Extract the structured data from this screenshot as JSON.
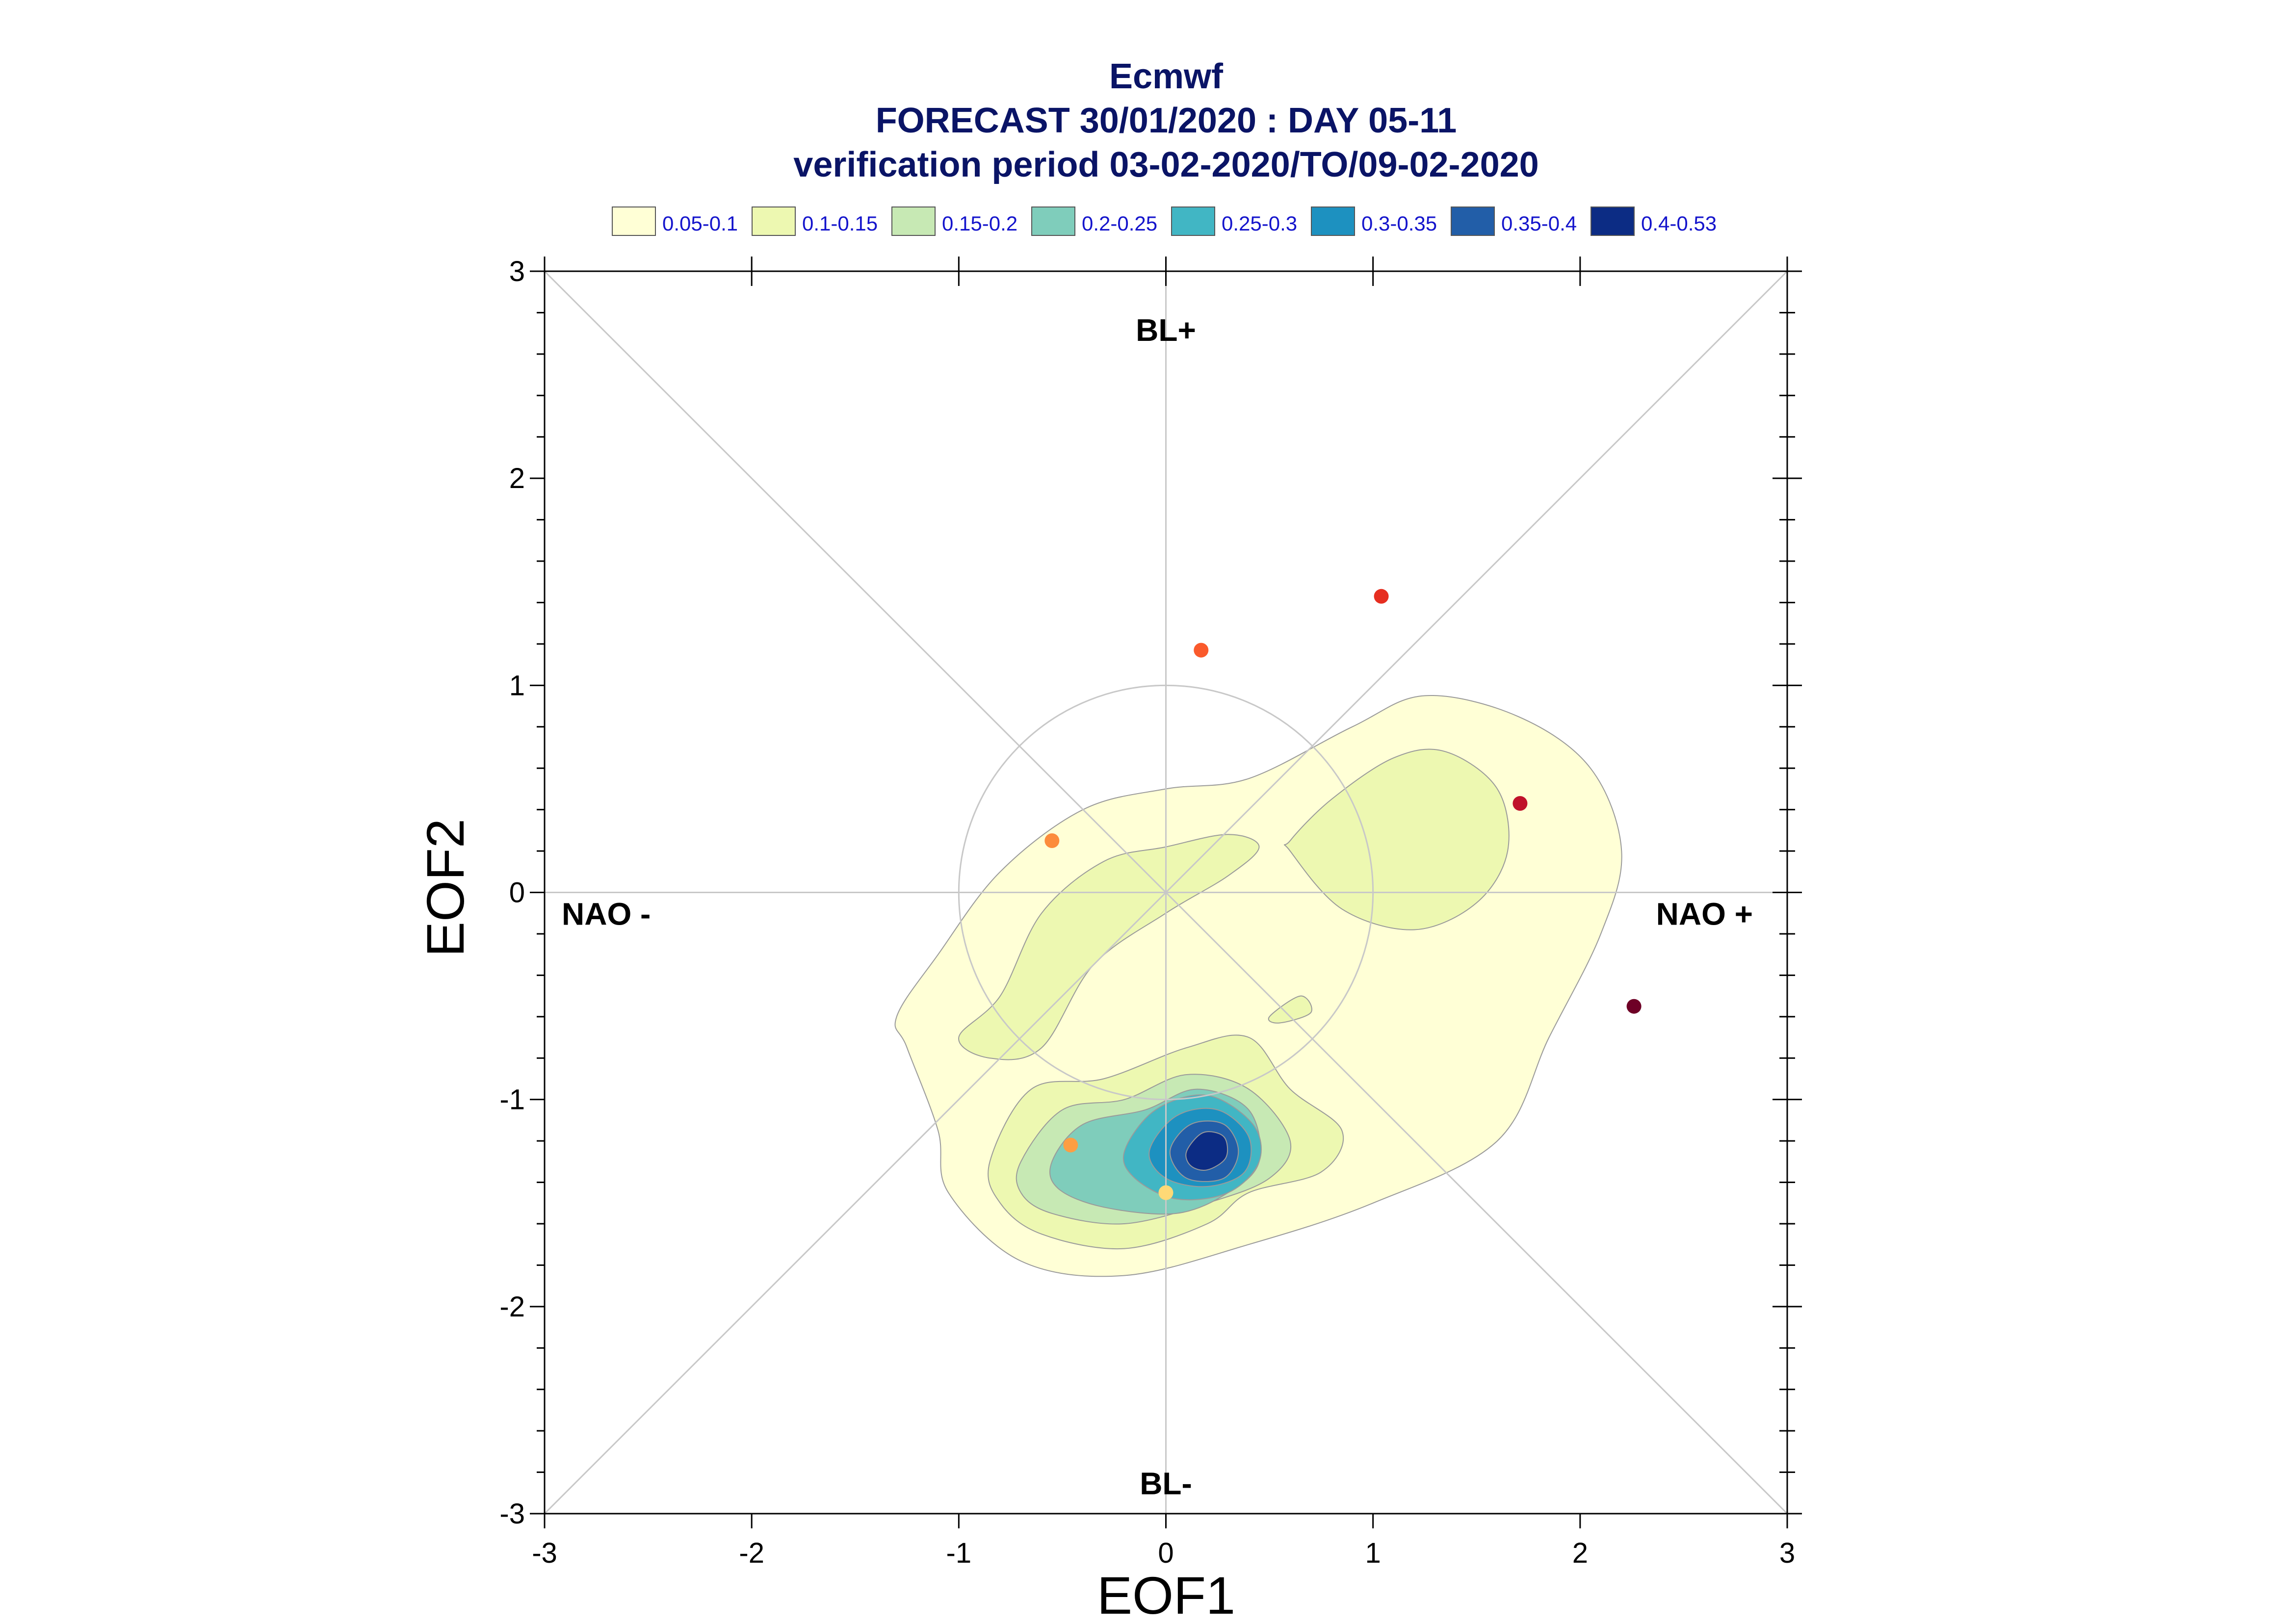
{
  "chart_data": {
    "type": "scatter",
    "title": [
      "Ecmwf",
      "FORECAST 30/01/2020 : DAY 05-11",
      "verification period 03-02-2020/TO/09-02-2020"
    ],
    "xlabel": "EOF1",
    "ylabel": "EOF2",
    "xlim": [
      -3,
      3
    ],
    "ylim": [
      -3,
      3
    ],
    "xticks": [
      -3,
      -2,
      -1,
      0,
      1,
      2,
      3
    ],
    "yticks": [
      -3,
      -2,
      -1,
      0,
      1,
      2,
      3
    ],
    "xtick_labels": [
      "-3",
      "-2",
      "-1",
      "0",
      "1",
      "2",
      "3"
    ],
    "ytick_labels": [
      "-3",
      "-2",
      "-1",
      "0",
      "1",
      "2",
      "3"
    ],
    "grid": false,
    "reference_circle_radius": 1,
    "region_labels": [
      {
        "text": "BL+",
        "x": 0,
        "y": 2.72
      },
      {
        "text": "BL-",
        "x": 0,
        "y": -2.85
      },
      {
        "text": "NAO -",
        "x": -2.55,
        "y": -0.1
      },
      {
        "text": "NAO +",
        "x": 2.55,
        "y": -0.1
      }
    ],
    "legend": {
      "placement": "top",
      "entries": [
        {
          "label": "0.05-0.1",
          "color": "#ffffd6"
        },
        {
          "label": "0.1-0.15",
          "color": "#edf8b1"
        },
        {
          "label": "0.15-0.2",
          "color": "#c7e9b4"
        },
        {
          "label": "0.2-0.25",
          "color": "#7fcdbb"
        },
        {
          "label": "0.25-0.3",
          "color": "#41b6c4"
        },
        {
          "label": "0.3-0.35",
          "color": "#1d91c0"
        },
        {
          "label": "0.35-0.4",
          "color": "#225ea8"
        },
        {
          "label": "0.4-0.53",
          "color": "#0c2c84"
        }
      ]
    },
    "density_contours": [
      {
        "level": "0.05-0.1",
        "color": "#ffffd6",
        "points": [
          [
            -1.1,
            -0.3
          ],
          [
            -0.8,
            0.1
          ],
          [
            -0.4,
            0.4
          ],
          [
            0,
            0.5
          ],
          [
            0.4,
            0.55
          ],
          [
            0.9,
            0.8
          ],
          [
            1.25,
            0.95
          ],
          [
            1.7,
            0.85
          ],
          [
            2.05,
            0.6
          ],
          [
            2.2,
            0.2
          ],
          [
            2.1,
            -0.2
          ],
          [
            1.85,
            -0.7
          ],
          [
            1.6,
            -1.2
          ],
          [
            1.0,
            -1.5
          ],
          [
            0.4,
            -1.7
          ],
          [
            -0.2,
            -1.85
          ],
          [
            -0.7,
            -1.78
          ],
          [
            -1.05,
            -1.45
          ],
          [
            -1.1,
            -1.15
          ],
          [
            -1.25,
            -0.75
          ],
          [
            -1.3,
            -0.6
          ]
        ]
      },
      {
        "level": "0.1-0.15",
        "color": "#edf8b1",
        "points": [
          [
            -0.8,
            -0.5
          ],
          [
            -0.6,
            -0.1
          ],
          [
            -0.3,
            0.15
          ],
          [
            0,
            0.22
          ],
          [
            0.3,
            0.28
          ],
          [
            0.45,
            0.22
          ],
          [
            0.3,
            0.08
          ],
          [
            0,
            -0.1
          ],
          [
            -0.35,
            -0.35
          ],
          [
            -0.6,
            -0.75
          ],
          [
            -0.85,
            -0.8
          ],
          [
            -1.0,
            -0.7
          ]
        ]
      },
      {
        "level": "0.1-0.15",
        "color": "#edf8b1",
        "points": [
          [
            0.6,
            0.25
          ],
          [
            0.8,
            0.45
          ],
          [
            1.1,
            0.65
          ],
          [
            1.35,
            0.68
          ],
          [
            1.6,
            0.5
          ],
          [
            1.65,
            0.2
          ],
          [
            1.5,
            -0.05
          ],
          [
            1.2,
            -0.18
          ],
          [
            0.85,
            -0.08
          ],
          [
            0.6,
            0.2
          ]
        ]
      },
      {
        "level": "0.1-0.15",
        "color": "#edf8b1",
        "points": [
          [
            0.5,
            -0.6
          ],
          [
            0.65,
            -0.5
          ],
          [
            0.7,
            -0.58
          ],
          [
            0.55,
            -0.63
          ]
        ]
      },
      {
        "level": "0.1-0.15",
        "color": "#edf8b1",
        "points": [
          [
            -0.85,
            -1.3
          ],
          [
            -0.65,
            -0.95
          ],
          [
            -0.3,
            -0.9
          ],
          [
            0.1,
            -0.75
          ],
          [
            0.4,
            -0.7
          ],
          [
            0.6,
            -0.95
          ],
          [
            0.85,
            -1.15
          ],
          [
            0.75,
            -1.35
          ],
          [
            0.4,
            -1.45
          ],
          [
            0.2,
            -1.6
          ],
          [
            -0.2,
            -1.72
          ],
          [
            -0.6,
            -1.65
          ],
          [
            -0.8,
            -1.5
          ]
        ]
      },
      {
        "level": "0.15-0.2",
        "color": "#c7e9b4",
        "points": [
          [
            -0.7,
            -1.3
          ],
          [
            -0.5,
            -1.05
          ],
          [
            -0.2,
            -1.0
          ],
          [
            0.1,
            -0.88
          ],
          [
            0.4,
            -0.95
          ],
          [
            0.6,
            -1.2
          ],
          [
            0.5,
            -1.38
          ],
          [
            0.2,
            -1.5
          ],
          [
            -0.2,
            -1.6
          ],
          [
            -0.55,
            -1.55
          ],
          [
            -0.7,
            -1.45
          ]
        ]
      },
      {
        "level": "0.2-0.25",
        "color": "#7fcdbb",
        "points": [
          [
            -0.55,
            -1.3
          ],
          [
            -0.4,
            -1.12
          ],
          [
            -0.1,
            -1.05
          ],
          [
            0.15,
            -0.95
          ],
          [
            0.4,
            -1.05
          ],
          [
            0.45,
            -1.3
          ],
          [
            0.3,
            -1.45
          ],
          [
            0.05,
            -1.55
          ],
          [
            -0.3,
            -1.52
          ],
          [
            -0.52,
            -1.43
          ]
        ]
      },
      {
        "level": "0.25-0.3",
        "color": "#41b6c4",
        "points": [
          [
            -0.2,
            -1.25
          ],
          [
            -0.05,
            -1.05
          ],
          [
            0.2,
            -0.98
          ],
          [
            0.42,
            -1.12
          ],
          [
            0.45,
            -1.3
          ],
          [
            0.3,
            -1.45
          ],
          [
            0.05,
            -1.48
          ],
          [
            -0.15,
            -1.38
          ]
        ]
      },
      {
        "level": "0.3-0.35",
        "color": "#1d91c0",
        "points": [
          [
            -0.08,
            -1.25
          ],
          [
            0.05,
            -1.08
          ],
          [
            0.25,
            -1.05
          ],
          [
            0.4,
            -1.18
          ],
          [
            0.38,
            -1.35
          ],
          [
            0.2,
            -1.42
          ],
          [
            0.0,
            -1.38
          ]
        ]
      },
      {
        "level": "0.35-0.4",
        "color": "#225ea8",
        "points": [
          [
            0.02,
            -1.25
          ],
          [
            0.12,
            -1.12
          ],
          [
            0.28,
            -1.12
          ],
          [
            0.35,
            -1.25
          ],
          [
            0.28,
            -1.38
          ],
          [
            0.1,
            -1.38
          ]
        ]
      },
      {
        "level": "0.4-0.53",
        "color": "#0c2c84",
        "points": [
          [
            0.1,
            -1.25
          ],
          [
            0.18,
            -1.16
          ],
          [
            0.28,
            -1.18
          ],
          [
            0.29,
            -1.28
          ],
          [
            0.2,
            -1.34
          ],
          [
            0.12,
            -1.32
          ]
        ]
      }
    ],
    "members": [
      {
        "x": 1.04,
        "y": 1.43,
        "color": "#e62e20"
      },
      {
        "x": 0.17,
        "y": 1.17,
        "color": "#fa5a2c"
      },
      {
        "x": 1.71,
        "y": 0.43,
        "color": "#c0122a"
      },
      {
        "x": -0.55,
        "y": 0.25,
        "color": "#fc8c3c"
      },
      {
        "x": 2.26,
        "y": -0.55,
        "color": "#6e0026"
      },
      {
        "x": -0.46,
        "y": -1.22,
        "color": "#fd9e43"
      },
      {
        "x": 0.0,
        "y": -1.45,
        "color": "#fed976"
      }
    ]
  }
}
